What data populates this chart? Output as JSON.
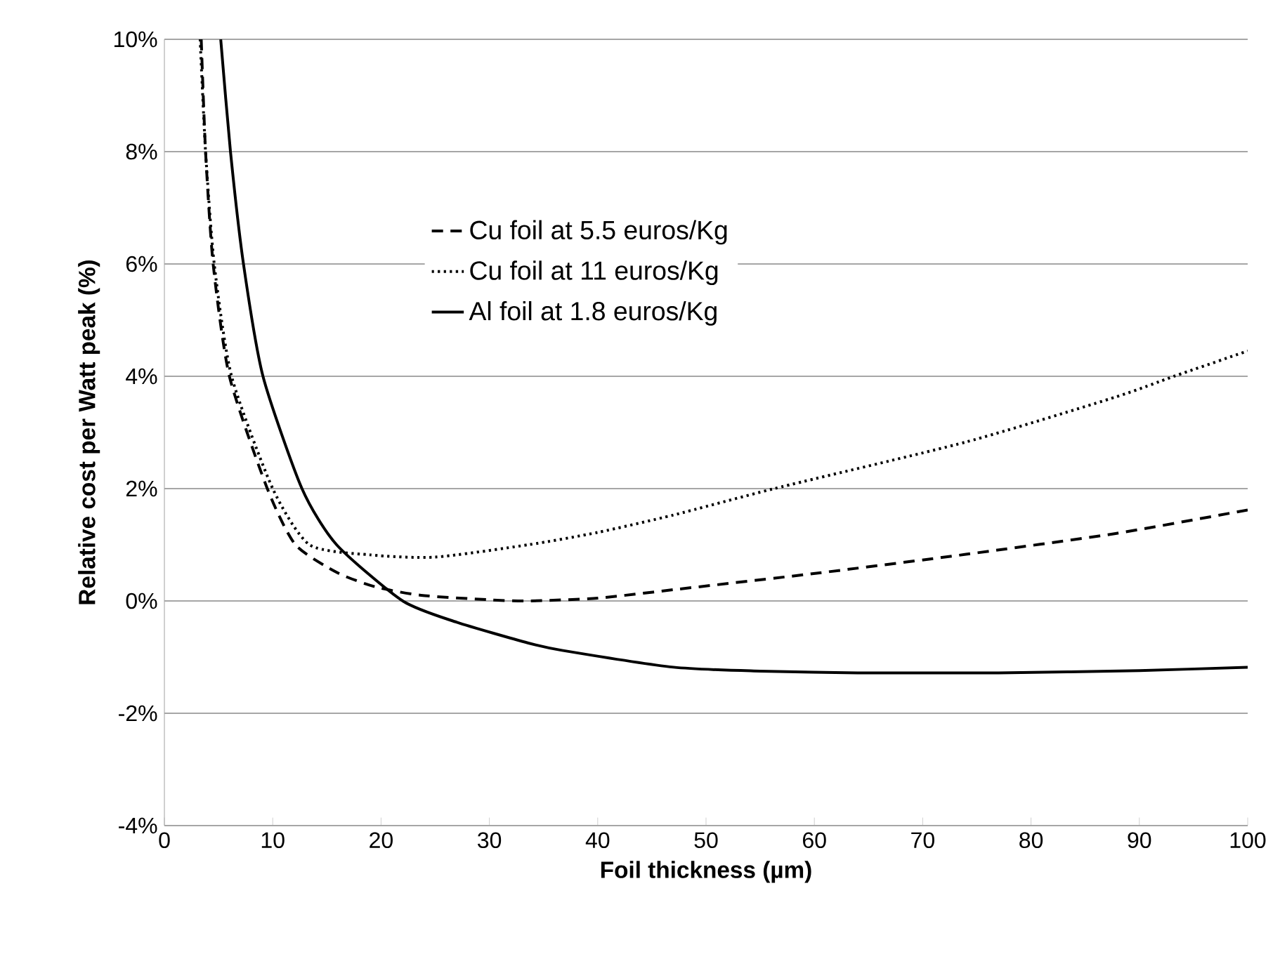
{
  "chart_data": {
    "type": "line",
    "xlabel": "Foil thickness (µm)",
    "ylabel": "Relative cost per Watt peak (%)",
    "xlim": [
      0,
      100
    ],
    "xticks": [
      0,
      10,
      20,
      30,
      40,
      50,
      60,
      70,
      80,
      90,
      100
    ],
    "ylim": [
      -4,
      10
    ],
    "yticks": [
      {
        "value": -4,
        "label": "-4%"
      },
      {
        "value": -2,
        "label": "-2%"
      },
      {
        "value": 0,
        "label": "0%"
      },
      {
        "value": 2,
        "label": "2%"
      },
      {
        "value": 4,
        "label": "4%"
      },
      {
        "value": 6,
        "label": "6%"
      },
      {
        "value": 8,
        "label": "8%"
      },
      {
        "value": 10,
        "label": "10%"
      }
    ],
    "grid": "y",
    "legend": "top",
    "marker": "none",
    "series": [
      {
        "name": "Cu foil at 5.5 euros/Kg",
        "color": "#000000",
        "line_style": "dashed",
        "x": [
          3.4,
          3.8,
          4.5,
          6.0,
          9.5,
          12.1,
          16,
          19.5,
          23.7,
          30,
          33.6,
          40,
          47,
          60.5,
          74,
          87.8,
          100
        ],
        "values": [
          10,
          8,
          6,
          4,
          2,
          1,
          0.5,
          0.25,
          0.1,
          0.02,
          0,
          0.05,
          0.2,
          0.5,
          0.83,
          1.2,
          1.62
        ]
      },
      {
        "name": "Cu foil at 11 euros/Kg",
        "color": "#000000",
        "line_style": "dotted",
        "x": [
          3.3,
          3.8,
          4.6,
          6.2,
          10,
          13.4,
          19,
          25,
          33.6,
          40,
          47,
          56.3,
          74,
          87.8,
          93.2,
          100
        ],
        "values": [
          10,
          8,
          6,
          4,
          2,
          1,
          0.82,
          0.78,
          1.0,
          1.22,
          1.53,
          2.0,
          2.83,
          3.63,
          4.0,
          4.45
        ]
      },
      {
        "name": "Al foil at 1.8 euros/Kg",
        "color": "#000000",
        "line_style": "solid",
        "x": [
          5.2,
          6.1,
          7.3,
          9.1,
          12.7,
          15.9,
          22,
          27,
          33.6,
          36.7,
          47,
          55,
          64,
          77,
          90,
          100
        ],
        "values": [
          10,
          8,
          6,
          4,
          2,
          1,
          0,
          -0.38,
          -0.75,
          -0.88,
          -1.18,
          -1.25,
          -1.28,
          -1.28,
          -1.24,
          -1.18
        ]
      }
    ]
  }
}
